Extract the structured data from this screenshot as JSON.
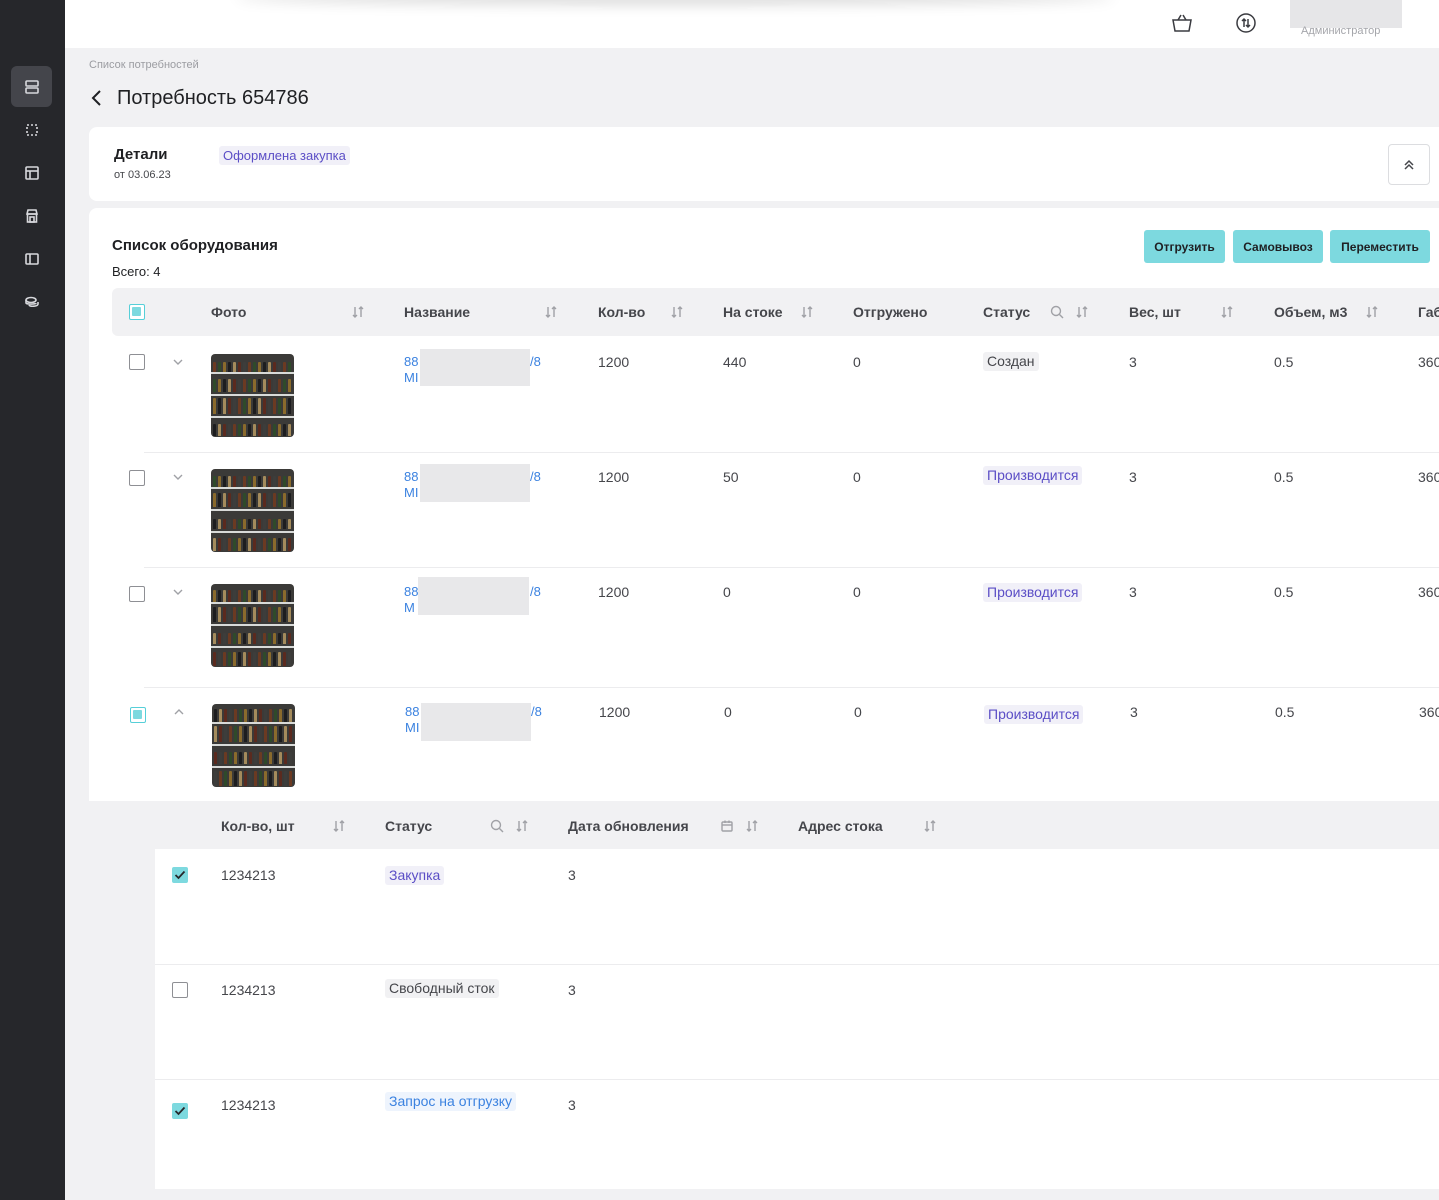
{
  "header": {
    "user_role": "Администратор",
    "cart_icon": "basket-icon",
    "sync_icon": "refresh-icon"
  },
  "sidebar": {
    "items": [
      {
        "icon": "storage-icon",
        "active": true
      },
      {
        "icon": "selection-icon",
        "active": false
      },
      {
        "icon": "layout-icon",
        "active": false
      },
      {
        "icon": "store-icon",
        "active": false
      },
      {
        "icon": "panel-icon",
        "active": false
      },
      {
        "icon": "coins-icon",
        "active": false
      }
    ]
  },
  "breadcrumb": "Список потребностей",
  "page_title": "Потребность 654786",
  "details": {
    "title": "Детали",
    "date": "от 03.06.23",
    "status": "Оформлена закупка"
  },
  "equipment": {
    "title": "Список оборудования",
    "total": "Всего: 4",
    "actions": [
      "Отгрузить",
      "Самовывоз",
      "Переместить"
    ],
    "columns": [
      "Фото",
      "Название",
      "Кол-во",
      "На стоке",
      "Отгружено",
      "Статус",
      "Вес, шт",
      "Объем, м3",
      "Габ"
    ],
    "rows": [
      {
        "name_start": "88",
        "name_end": "/8",
        "name_line2": "MI",
        "qty": "1200",
        "stock": "440",
        "shipped": "0",
        "status": "Создан",
        "status_tone": "gray",
        "weight": "3",
        "volume": "0.5",
        "dims": "360",
        "checkbox": "empty",
        "expanded": false
      },
      {
        "name_start": "88",
        "name_end": "/8",
        "name_line2": "MI",
        "qty": "1200",
        "stock": "50",
        "shipped": "0",
        "status": "Производится",
        "status_tone": "purple",
        "weight": "3",
        "volume": "0.5",
        "dims": "360",
        "checkbox": "empty",
        "expanded": false
      },
      {
        "name_start": "88",
        "name_end": "/8",
        "name_line2": "M",
        "qty": "1200",
        "stock": "0",
        "shipped": "0",
        "status": "Производится",
        "status_tone": "purple",
        "weight": "3",
        "volume": "0.5",
        "dims": "360",
        "checkbox": "empty",
        "expanded": false
      },
      {
        "name_start": "88",
        "name_end": "/8",
        "name_line2": "MI",
        "qty": "1200",
        "stock": "0",
        "shipped": "0",
        "status": "Производится",
        "status_tone": "purple",
        "weight": "3",
        "volume": "0.5",
        "dims": "360",
        "checkbox": "partial",
        "expanded": true
      }
    ]
  },
  "sub_table": {
    "columns": [
      "Кол-во, шт",
      "Статус",
      "Дата обновления",
      "Адрес стока"
    ],
    "rows": [
      {
        "qty": "1234213",
        "status": "Закупка",
        "status_tone": "purple",
        "date": "3",
        "checked": true
      },
      {
        "qty": "1234213",
        "status": "Свободный сток",
        "status_tone": "gray",
        "date": "3",
        "checked": false
      },
      {
        "qty": "1234213",
        "status": "Запрос на отгрузку",
        "status_tone": "blue",
        "date": "3",
        "checked": true
      }
    ]
  },
  "colors": {
    "accent": "#7dd9df",
    "link": "#3b82e0",
    "status_purple": "#5b4ec6",
    "sidebar": "#26272b"
  }
}
